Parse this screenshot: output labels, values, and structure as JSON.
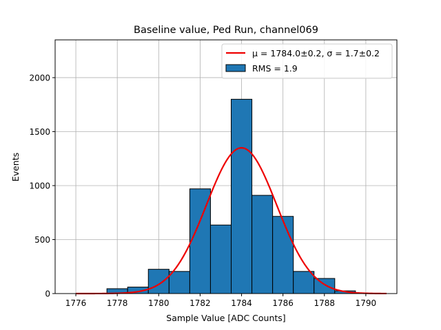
{
  "chart_data": {
    "type": "bar",
    "title": "Baseline value, Ped Run, channel069",
    "xlabel": "Sample Value [ADC Counts]",
    "ylabel": "Events",
    "xlim": [
      1775,
      1791.5
    ],
    "ylim": [
      0,
      2350
    ],
    "xticks": [
      1776,
      1778,
      1780,
      1782,
      1784,
      1786,
      1788,
      1790
    ],
    "yticks": [
      0,
      500,
      1000,
      1500,
      2000
    ],
    "grid": true,
    "legend_position": "top-right",
    "bar_color": "#1f77b4",
    "fit_color": "#ee0000",
    "bins": [
      {
        "left": 1777.5,
        "right": 1778.5,
        "count": 45
      },
      {
        "left": 1778.5,
        "right": 1779.5,
        "count": 60
      },
      {
        "left": 1779.5,
        "right": 1780.5,
        "count": 225
      },
      {
        "left": 1780.5,
        "right": 1781.5,
        "count": 205
      },
      {
        "left": 1781.5,
        "right": 1782.5,
        "count": 970
      },
      {
        "left": 1782.5,
        "right": 1783.5,
        "count": 635
      },
      {
        "left": 1783.5,
        "right": 1784.5,
        "count": 1800
      },
      {
        "left": 1784.5,
        "right": 1785.5,
        "count": 910
      },
      {
        "left": 1785.5,
        "right": 1786.5,
        "count": 715
      },
      {
        "left": 1786.5,
        "right": 1787.5,
        "count": 205
      },
      {
        "left": 1787.5,
        "right": 1788.5,
        "count": 140
      },
      {
        "left": 1788.5,
        "right": 1789.5,
        "count": 25
      }
    ],
    "fit": {
      "mu": 1784.0,
      "sigma": 1.7,
      "amplitude": 1350,
      "x_range": [
        1776,
        1791
      ]
    },
    "legend": [
      {
        "key": "fit",
        "label": "μ = 1784.0±0.2, σ = 1.7±0.2"
      },
      {
        "key": "hist",
        "label": "RMS = 1.9"
      }
    ]
  }
}
